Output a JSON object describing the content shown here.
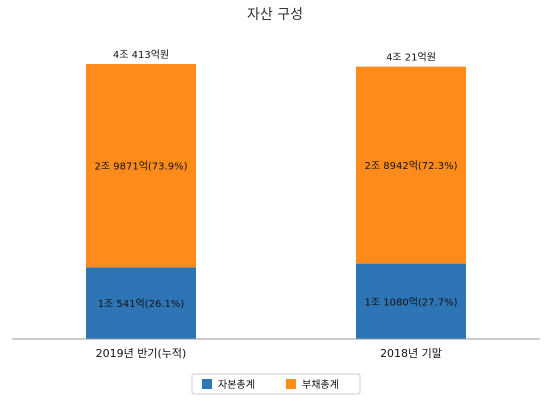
{
  "chart_data": {
    "type": "bar",
    "stacked": true,
    "title": "자산 구성",
    "categories": [
      "2019년 반기(누적)",
      "2018년 기말"
    ],
    "totals": [
      "4조 413억원",
      "4조 21억원"
    ],
    "series": [
      {
        "name": "자본총계",
        "color": "#2e75b6",
        "values": [
          10541,
          11080
        ],
        "percents": [
          26.1,
          27.7
        ],
        "labels": [
          "1조 541억(26.1%)",
          "1조 1080억(27.7%)"
        ]
      },
      {
        "name": "부채총계",
        "color": "#ff8c1a",
        "values": [
          29871,
          28942
        ],
        "percents": [
          73.9,
          72.3
        ],
        "labels": [
          "2조 9871억(73.9%)",
          "2조 8942억(72.3%)"
        ]
      }
    ],
    "value_unit": "억원",
    "grid": false,
    "legend_position": "bottom"
  }
}
